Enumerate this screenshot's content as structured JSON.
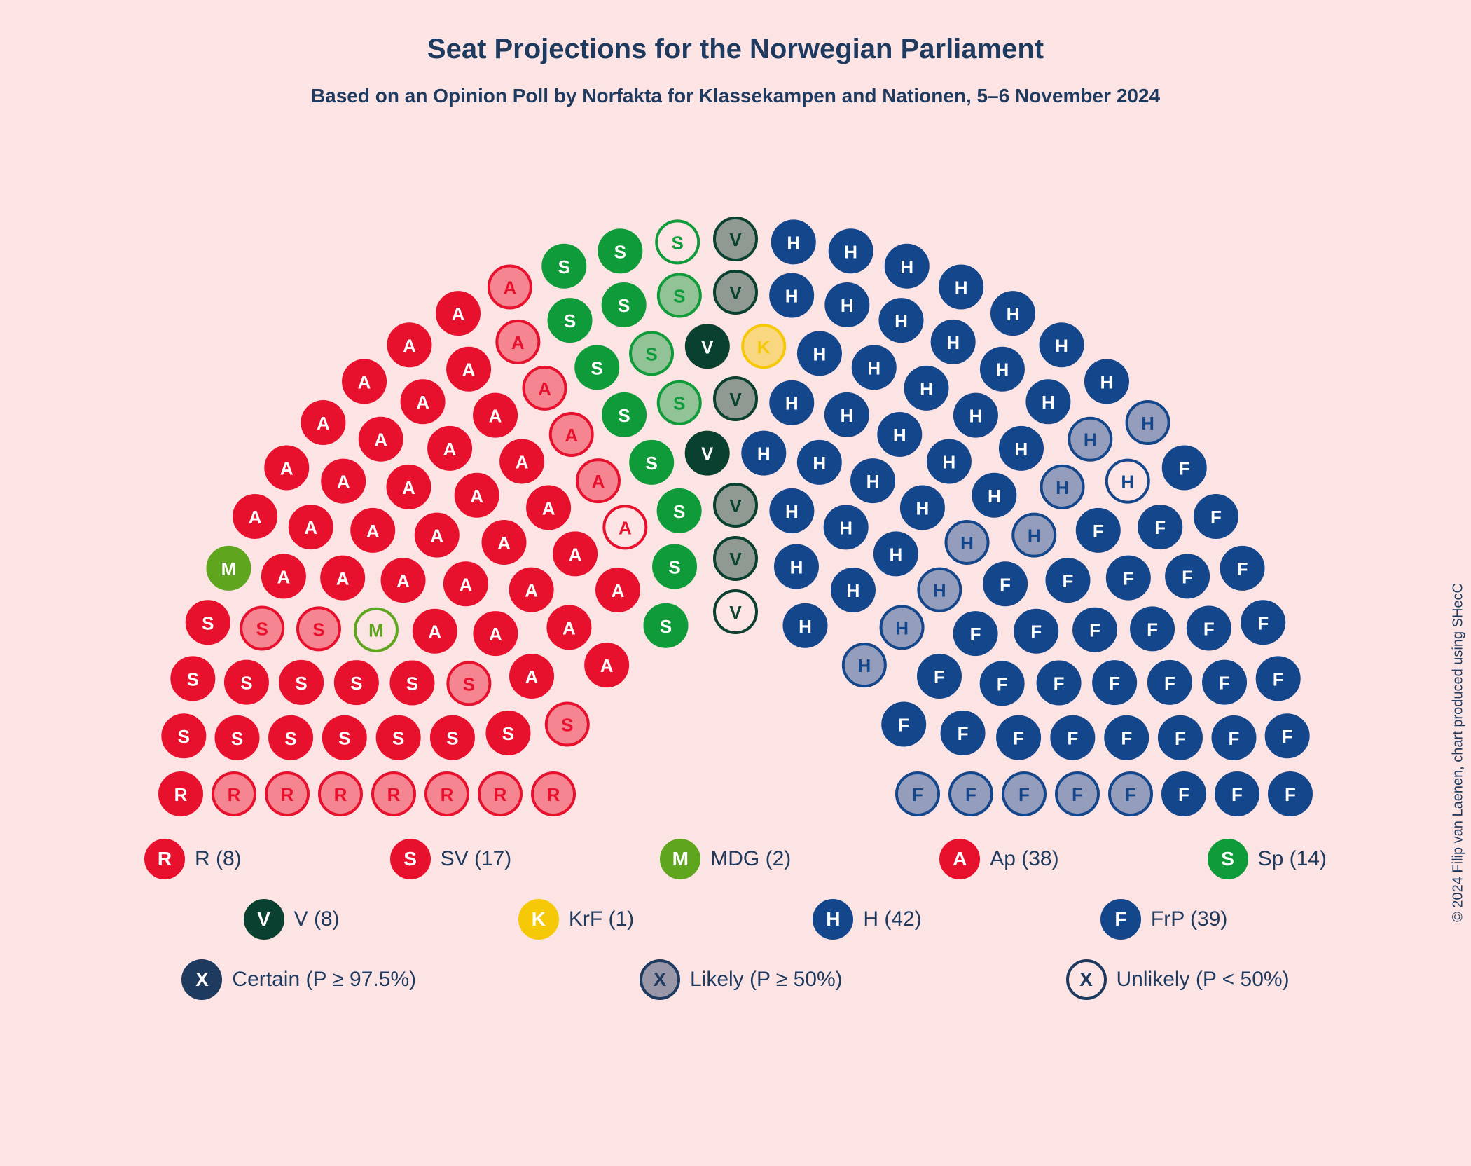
{
  "title": "Seat Projections for the Norwegian Parliament",
  "subtitle": "Based on an Opinion Poll by Norfakta for Klassekampen and Nationen, 5–6 November 2024",
  "credit": "© 2024 Filip van Laenen, chart produced using SHecC",
  "colors": {
    "background": "#fde4e4",
    "text": "#1e3a5f"
  },
  "chart": {
    "type": "hemicycle",
    "total_seats": 169,
    "seat_radius": 30,
    "seat_fontsize": 26,
    "certainty_styles": {
      "certain": {
        "fill_alpha": 1.0,
        "stroke_alpha": 1.0,
        "letter_on_fill": true
      },
      "likely": {
        "fill_alpha": 0.45,
        "stroke_alpha": 1.0,
        "letter_on_fill": true
      },
      "unlikely": {
        "fill_alpha": 0.0,
        "stroke_alpha": 1.0,
        "letter_on_fill": false
      }
    },
    "parties": {
      "R": {
        "letter": "R",
        "color": "#e8112d",
        "letter_color": "#ffffff"
      },
      "SV": {
        "letter": "S",
        "color": "#e8112d",
        "letter_color": "#ffffff"
      },
      "MDG": {
        "letter": "M",
        "color": "#5fa61e",
        "letter_color": "#ffffff"
      },
      "Ap": {
        "letter": "A",
        "color": "#e8112d",
        "letter_color": "#ffffff"
      },
      "Sp": {
        "letter": "S",
        "color": "#0f9b3a",
        "letter_color": "#ffffff"
      },
      "V": {
        "letter": "V",
        "color": "#0a4030",
        "letter_color": "#ffffff"
      },
      "KrF": {
        "letter": "K",
        "color": "#f5c808",
        "letter_color": "#ffffff"
      },
      "H": {
        "letter": "H",
        "color": "#14468b",
        "letter_color": "#ffffff"
      },
      "FrP": {
        "letter": "F",
        "color": "#14468b",
        "letter_color": "#ffffff"
      }
    },
    "order": [
      "R",
      "SV",
      "MDG",
      "Ap",
      "Sp",
      "V",
      "KrF",
      "H",
      "FrP"
    ],
    "distribution": {
      "R": {
        "certain": 1,
        "likely": 7,
        "unlikely": 0
      },
      "SV": {
        "certain": 13,
        "likely": 4,
        "unlikely": 0
      },
      "MDG": {
        "certain": 1,
        "likely": 0,
        "unlikely": 1
      },
      "Ap": {
        "certain": 32,
        "likely": 5,
        "unlikely": 1
      },
      "Sp": {
        "certain": 10,
        "likely": 3,
        "unlikely": 1
      },
      "V": {
        "certain": 2,
        "likely": 5,
        "unlikely": 1
      },
      "KrF": {
        "certain": 0,
        "likely": 1,
        "unlikely": 0
      },
      "H": {
        "certain": 33,
        "likely": 8,
        "unlikely": 1
      },
      "FrP": {
        "certain": 33,
        "likely": 6,
        "unlikely": 0
      }
    }
  },
  "legend_parties": [
    {
      "key": "R",
      "label": "R (8)"
    },
    {
      "key": "SV",
      "label": "SV (17)"
    },
    {
      "key": "MDG",
      "label": "MDG (2)"
    },
    {
      "key": "Ap",
      "label": "Ap (38)"
    },
    {
      "key": "Sp",
      "label": "Sp (14)"
    },
    {
      "key": "V",
      "label": "V (8)"
    },
    {
      "key": "KrF",
      "label": "KrF (1)"
    },
    {
      "key": "H",
      "label": "H (42)"
    },
    {
      "key": "FrP",
      "label": "FrP (39)"
    }
  ],
  "legend_certainty": [
    {
      "letter": "X",
      "style": "certain",
      "label": "Certain (P ≥ 97.5%)"
    },
    {
      "letter": "X",
      "style": "likely",
      "label": "Likely (P ≥ 50%)"
    },
    {
      "letter": "X",
      "style": "unlikely",
      "label": "Unlikely (P < 50%)"
    }
  ]
}
